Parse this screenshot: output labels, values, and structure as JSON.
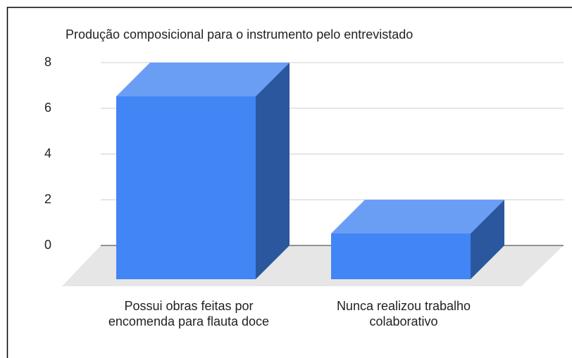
{
  "chart_data": {
    "type": "bar3d",
    "title": "Produção composicional para o instrumento pelo entrevistado",
    "categories": [
      "Possui obras feitas por encomenda para flauta doce",
      "Nunca realizou trabalho colaborativo"
    ],
    "values": [
      8,
      2
    ],
    "color": "#4285f4",
    "ylim": [
      0,
      8
    ],
    "yticks": [
      0,
      2,
      4,
      6,
      8
    ],
    "grid": true
  }
}
